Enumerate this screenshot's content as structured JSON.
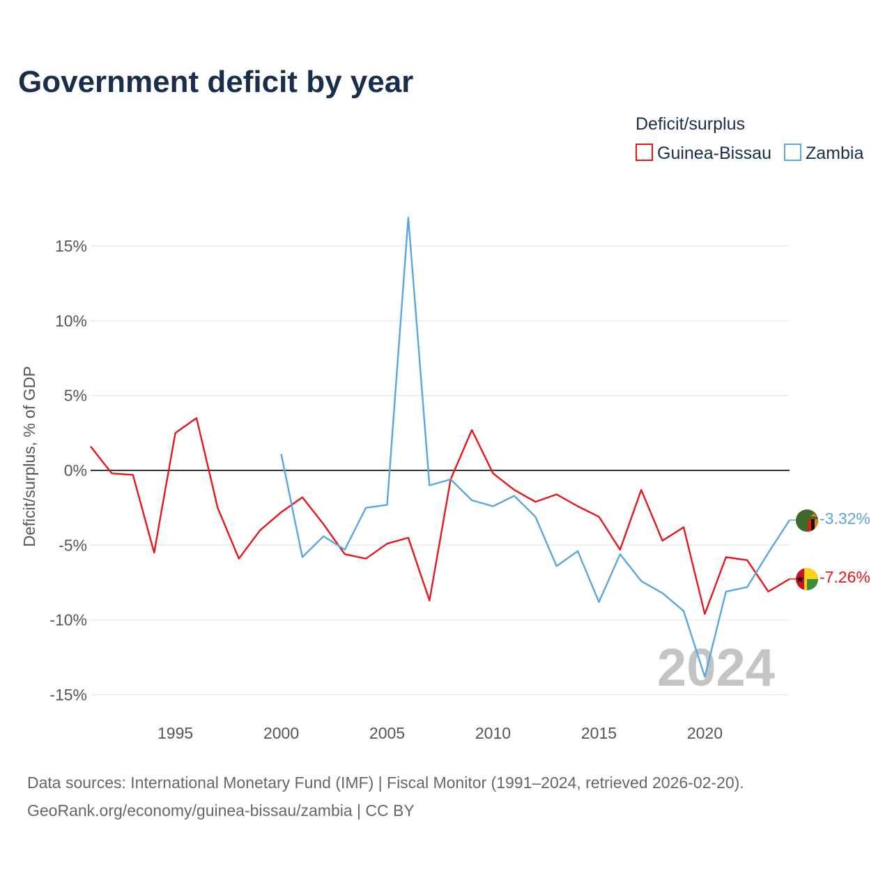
{
  "chart_data": {
    "type": "line",
    "title": "Government deficit by year",
    "legend_title": "Deficit/surplus",
    "legend_position": "top-right",
    "ylabel": "Deficit/surplus, % of GDP",
    "xlabel": "",
    "xlim": [
      1991,
      2024
    ],
    "ylim": [
      -16,
      18
    ],
    "x_ticks": [
      1995,
      2000,
      2005,
      2010,
      2015,
      2020
    ],
    "x_tick_labels": [
      "1995",
      "2000",
      "2005",
      "2010",
      "2015",
      "2020"
    ],
    "y_ticks": [
      15,
      10,
      5,
      0,
      -5,
      -10,
      -15
    ],
    "y_tick_labels": [
      "15%",
      "10%",
      "5%",
      "0%",
      "-5%",
      "-10%",
      "-15%"
    ],
    "year_label": "2024",
    "series": [
      {
        "name": "Guinea-Bissau",
        "color": "#e8161b",
        "end_label": "-7.26%",
        "points": [
          [
            1991,
            1.6
          ],
          [
            1992,
            -0.2
          ],
          [
            1993,
            -0.3
          ],
          [
            1994,
            -5.5
          ],
          [
            1995,
            2.5
          ],
          [
            1996,
            3.5
          ],
          [
            1997,
            -2.5
          ],
          [
            1998,
            -5.9
          ],
          [
            1999,
            -4.0
          ],
          [
            2000,
            -2.8
          ],
          [
            2001,
            -1.8
          ],
          [
            2002,
            -3.6
          ],
          [
            2003,
            -5.6
          ],
          [
            2004,
            -5.9
          ],
          [
            2005,
            -4.9
          ],
          [
            2006,
            -4.5
          ],
          [
            2007,
            -8.7
          ],
          [
            2008,
            -0.6
          ],
          [
            2009,
            2.7
          ],
          [
            2010,
            -0.2
          ],
          [
            2011,
            -1.3
          ],
          [
            2012,
            -2.1
          ],
          [
            2013,
            -1.6
          ],
          [
            2014,
            -2.4
          ],
          [
            2015,
            -3.1
          ],
          [
            2016,
            -5.3
          ],
          [
            2017,
            -1.3
          ],
          [
            2018,
            -4.7
          ],
          [
            2019,
            -3.8
          ],
          [
            2020,
            -9.6
          ],
          [
            2021,
            -5.8
          ],
          [
            2022,
            -6.0
          ],
          [
            2023,
            -8.1
          ],
          [
            2024,
            -7.26
          ]
        ]
      },
      {
        "name": "Zambia",
        "color": "#5ba5e0",
        "end_label": "-3.32%",
        "points": [
          [
            2000,
            1.1
          ],
          [
            2001,
            -5.8
          ],
          [
            2002,
            -4.4
          ],
          [
            2003,
            -5.3
          ],
          [
            2004,
            -2.5
          ],
          [
            2005,
            -2.3
          ],
          [
            2006,
            16.9
          ],
          [
            2007,
            -1.0
          ],
          [
            2008,
            -0.6
          ],
          [
            2009,
            -2.0
          ],
          [
            2010,
            -2.4
          ],
          [
            2011,
            -1.7
          ],
          [
            2012,
            -3.1
          ],
          [
            2013,
            -6.4
          ],
          [
            2014,
            -5.4
          ],
          [
            2015,
            -8.8
          ],
          [
            2016,
            -5.6
          ],
          [
            2017,
            -7.4
          ],
          [
            2018,
            -8.2
          ],
          [
            2019,
            -9.4
          ],
          [
            2020,
            -13.8
          ],
          [
            2021,
            -8.1
          ],
          [
            2022,
            -7.8
          ],
          [
            2023,
            -5.5
          ],
          [
            2024,
            -3.32
          ]
        ]
      }
    ]
  },
  "source": {
    "line1": "Data sources: International Monetary Fund (IMF) | Fiscal Monitor (1991–2024, retrieved 2026-02-20).",
    "line2": "GeoRank.org/economy/guinea-bissau/zambia | CC BY"
  },
  "colors": {
    "title": "#1a2e4a",
    "grid": "#e6e6e6",
    "zero_line": "#333333",
    "tick": "#555555",
    "watermark": "#c4c4c4"
  }
}
